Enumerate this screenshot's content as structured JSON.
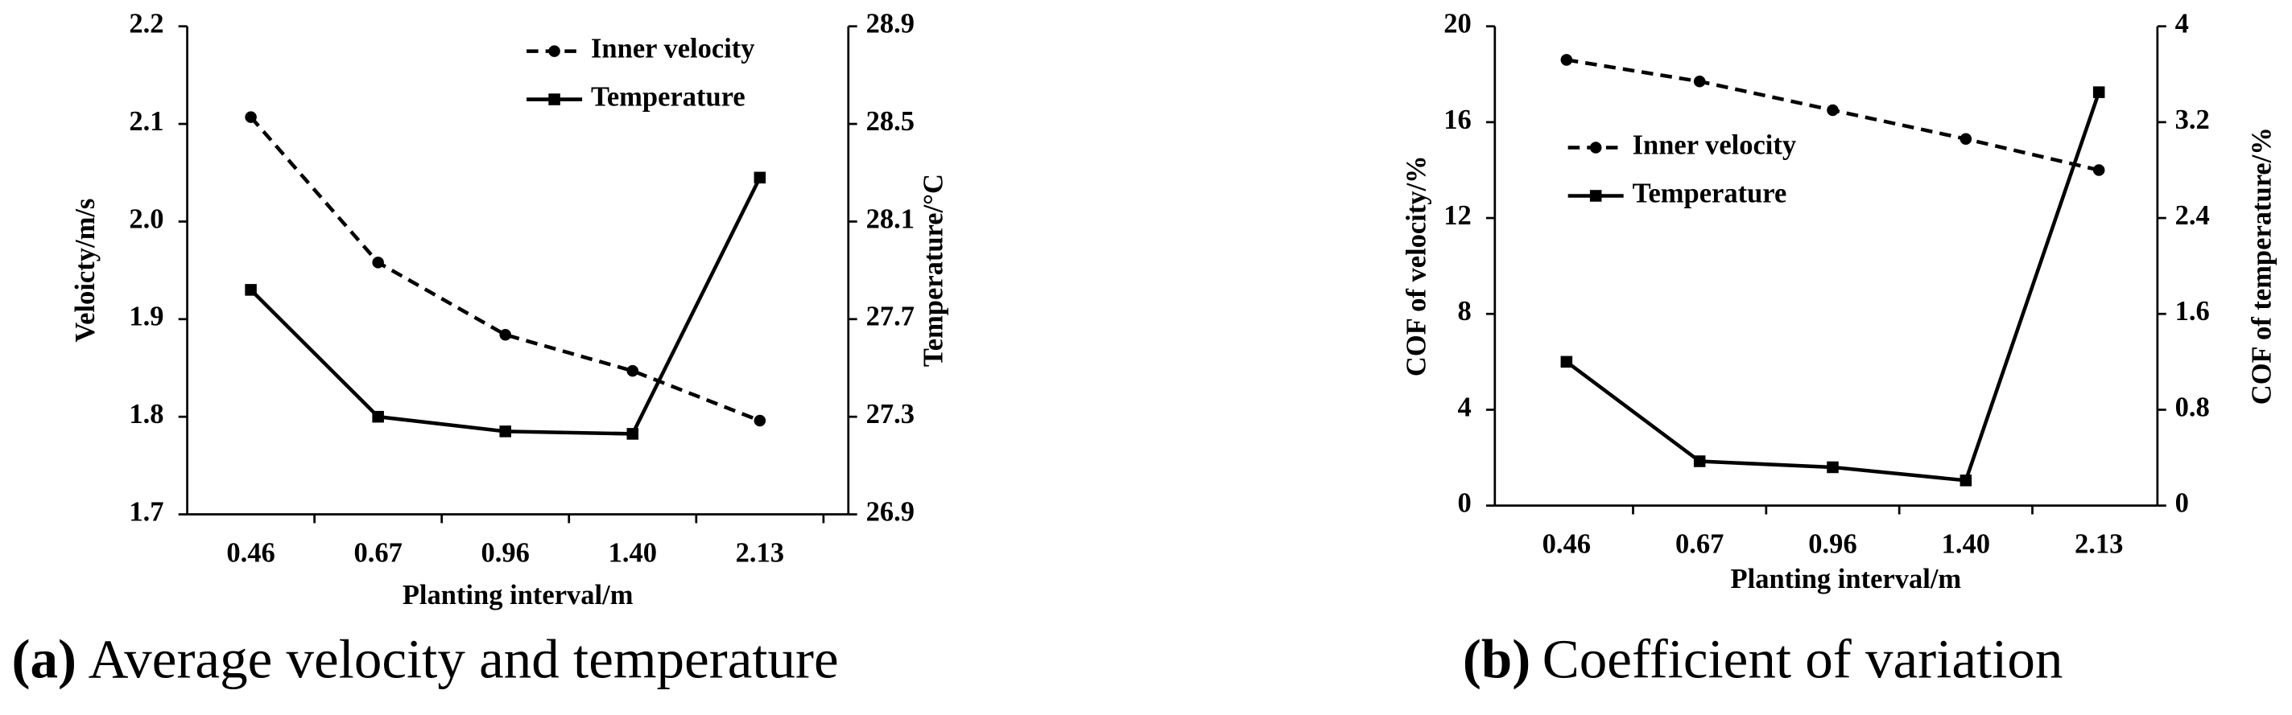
{
  "chart_data": [
    {
      "type": "line",
      "tag": "(a)",
      "caption": "Average velocity and temperature",
      "xlabel": "Planting interval/m",
      "ylabel": "Veloicty/m/s",
      "y2label": "Temperature/°C",
      "categories": [
        "0.46",
        "0.67",
        "0.96",
        "1.40",
        "2.13"
      ],
      "series": [
        {
          "name": "Inner velocity",
          "color": "#000000",
          "style": "dashed",
          "marker": "circle",
          "values": [
            2.107,
            1.958,
            1.884,
            1.847,
            1.796
          ]
        },
        {
          "name": "Temperature",
          "color": "#000000",
          "style": "solid",
          "marker": "square",
          "axis": "y2",
          "values": [
            27.82,
            27.3,
            27.24,
            27.23,
            28.28
          ]
        }
      ],
      "ylim": [
        1.7,
        2.2
      ],
      "yticks": [
        1.7,
        1.8,
        1.9,
        {
          "value": 2,
          "label": "2.0"
        },
        2.1,
        2.2
      ],
      "y2lim": [
        26.9,
        28.9
      ],
      "y2ticks": [
        26.9,
        27.3,
        27.7,
        28.1,
        28.5,
        28.9
      ],
      "grid": false,
      "legend": "upper right"
    },
    {
      "type": "line",
      "tag": "(b)",
      "caption": "Coefficient of variation",
      "xlabel": "Planting interval/m",
      "ylabel": "COF of velocity/%",
      "y2label": "COF of temperature/%",
      "categories": [
        "0.46",
        "0.67",
        "0.96",
        "1.40",
        "2.13"
      ],
      "series": [
        {
          "name": "Inner velocity",
          "color": "#000000",
          "style": "dashed",
          "marker": "circle",
          "values": [
            18.6,
            17.7,
            16.5,
            15.3,
            14.0
          ]
        },
        {
          "name": "Temperature",
          "color": "#000000",
          "style": "solid",
          "marker": "square",
          "axis": "y2",
          "values": [
            1.2,
            0.37,
            0.32,
            0.21,
            3.45
          ]
        }
      ],
      "ylim": [
        0,
        20
      ],
      "yticks": [
        0,
        4,
        8,
        12,
        16,
        20
      ],
      "y2lim": [
        0,
        4
      ],
      "y2ticks": [
        0,
        0.8,
        1.6,
        2.4,
        3.2,
        4
      ],
      "grid": false,
      "legend": "center left"
    }
  ]
}
